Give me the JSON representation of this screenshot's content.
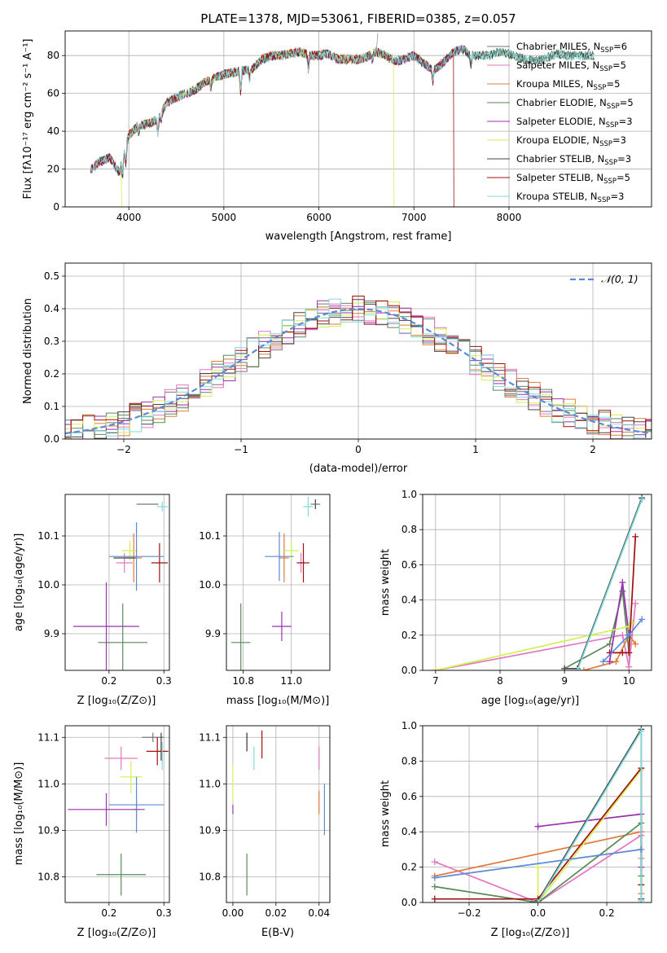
{
  "colors": {
    "chabrier_miles": "#777777",
    "salpeter_miles": "#e377c2",
    "kroupa_miles": "#e07b39",
    "chabrier_elodie": "#5a8a5a",
    "salpeter_elodie": "#9b30b0",
    "kroupa_elodie": "#d4ef55",
    "chabrier_stelib": "#444444",
    "salpeter_stelib": "#a01010",
    "kroupa_stelib": "#80dada",
    "normal": "#5b8ad8",
    "blue_extra": "#5b8ad8"
  },
  "chart_data": [
    {
      "id": "spectrum",
      "type": "line",
      "title": "PLATE=1378, MJD=53061, FIBERID=0385, z=0.057",
      "xlabel": "wavelength [Angstrom, rest frame]",
      "ylabel": "Flux [fλ10⁻¹⁷ erg cm⁻² s⁻¹ A⁻¹]",
      "xlim": [
        3330,
        9500
      ],
      "ylim": [
        0,
        93
      ],
      "xticks": [
        "4000",
        "5000",
        "6000",
        "7000",
        "8000"
      ],
      "yticks": [
        "0",
        "20",
        "40",
        "60",
        "80"
      ],
      "legend_placement": "top-right",
      "legend": [
        {
          "label": "Chabrier MILES, N",
          "sub": "SSP",
          "eq": "=6"
        },
        {
          "label": "Salpeter MILES, N",
          "sub": "SSP",
          "eq": "=5"
        },
        {
          "label": "Kroupa MILES, N",
          "sub": "SSP",
          "eq": "=5"
        },
        {
          "label": "Chabrier ELODIE, N",
          "sub": "SSP",
          "eq": "=5"
        },
        {
          "label": "Salpeter ELODIE, N",
          "sub": "SSP",
          "eq": "=3"
        },
        {
          "label": "Kroupa ELODIE, N",
          "sub": "SSP",
          "eq": "=3"
        },
        {
          "label": "Chabrier STELIB, N",
          "sub": "SSP",
          "eq": "=3"
        },
        {
          "label": "Salpeter STELIB, N",
          "sub": "SSP",
          "eq": "=5"
        },
        {
          "label": "Kroupa STELIB, N",
          "sub": "SSP",
          "eq": "=3"
        }
      ],
      "flux_profile": [
        [
          3600,
          20
        ],
        [
          3700,
          24
        ],
        [
          3800,
          26
        ],
        [
          3900,
          18
        ],
        [
          3950,
          28
        ],
        [
          4000,
          38
        ],
        [
          4100,
          43
        ],
        [
          4200,
          44
        ],
        [
          4300,
          46
        ],
        [
          4400,
          55
        ],
        [
          4500,
          58
        ],
        [
          4600,
          60
        ],
        [
          4700,
          62
        ],
        [
          4800,
          66
        ],
        [
          4900,
          68
        ],
        [
          5000,
          70
        ],
        [
          5100,
          71
        ],
        [
          5200,
          72
        ],
        [
          5300,
          73
        ],
        [
          5400,
          78
        ],
        [
          5500,
          80
        ],
        [
          5600,
          80
        ],
        [
          5700,
          81
        ],
        [
          5800,
          82
        ],
        [
          5900,
          80
        ],
        [
          6000,
          80
        ],
        [
          6100,
          81
        ],
        [
          6200,
          78
        ],
        [
          6300,
          78
        ],
        [
          6400,
          78
        ],
        [
          6500,
          79
        ],
        [
          6600,
          82
        ],
        [
          6700,
          80
        ],
        [
          6800,
          77
        ],
        [
          6900,
          78
        ],
        [
          7000,
          80
        ],
        [
          7100,
          76
        ],
        [
          7200,
          72
        ],
        [
          7300,
          76
        ],
        [
          7400,
          81
        ],
        [
          7500,
          84
        ],
        [
          7600,
          80
        ],
        [
          7700,
          80
        ],
        [
          7800,
          80
        ],
        [
          7900,
          82
        ],
        [
          8000,
          81
        ],
        [
          8100,
          79
        ],
        [
          8200,
          78
        ],
        [
          8300,
          77
        ],
        [
          8400,
          79
        ],
        [
          8500,
          81
        ],
        [
          8600,
          80
        ],
        [
          8700,
          80
        ],
        [
          8800,
          80
        ],
        [
          8900,
          80
        ]
      ],
      "absorption_lines": [
        [
          3934,
          -10
        ],
        [
          3969,
          -9
        ],
        [
          4102,
          -4
        ],
        [
          4305,
          -8
        ],
        [
          4340,
          -5
        ],
        [
          4861,
          -5
        ],
        [
          5175,
          -12
        ],
        [
          5270,
          -6
        ],
        [
          5890,
          -9
        ],
        [
          6563,
          -4
        ],
        [
          7200,
          -6
        ],
        [
          7600,
          -5
        ]
      ]
    },
    {
      "id": "residuals",
      "type": "histogram",
      "xlabel": "(data-model)/error",
      "ylabel": "Normed distribution",
      "xlim": [
        -2.5,
        2.5
      ],
      "ylim": [
        0,
        0.54
      ],
      "xticks": [
        "−2",
        "−1",
        "0",
        "1",
        "2"
      ],
      "yticks": [
        "0.0",
        "0.1",
        "0.2",
        "0.3",
        "0.4",
        "0.5"
      ],
      "legend_placement": "top-right",
      "legend": [
        {
          "label": "𝒩(0, 1)"
        }
      ],
      "bin_width": 0.1,
      "series_seeds": [
        1,
        2,
        3,
        4,
        5,
        6,
        7,
        8,
        9
      ]
    },
    {
      "id": "age_vs_Z",
      "type": "errorbar",
      "xlabel": "Z [log₁₀(Z/Z⊙)]",
      "ylabel": "age  [log₁₀(age/yr)]",
      "xlim": [
        0.12,
        0.31
      ],
      "ylim": [
        9.825,
        10.185
      ],
      "xticks": [
        "0.2",
        "0.3"
      ],
      "yticks": [
        "9.9",
        "10.0",
        "10.1"
      ],
      "points": [
        {
          "s": "chabrier_miles",
          "x": 0.27,
          "y": 10.165,
          "xe": 0.02,
          "ye": 0.0
        },
        {
          "s": "salpeter_miles",
          "x": 0.228,
          "y": 10.045,
          "xe": 0.015,
          "ye": 0.02
        },
        {
          "s": "kroupa_miles",
          "x": 0.245,
          "y": 10.055,
          "xe": 0.015,
          "ye": 0.05
        },
        {
          "s": "chabrier_elodie",
          "x": 0.225,
          "y": 9.882,
          "xe": 0.045,
          "ye": 0.08
        },
        {
          "s": "salpeter_elodie",
          "x": 0.195,
          "y": 9.915,
          "xe": 0.06,
          "ye": 0.09
        },
        {
          "s": "kroupa_elodie",
          "x": 0.238,
          "y": 10.07,
          "xe": 0.015,
          "ye": 0.02
        },
        {
          "s": "chabrier_stelib",
          "x": 0.228,
          "y": 10.055,
          "xe": 0.02,
          "ye": 0.0
        },
        {
          "s": "salpeter_stelib",
          "x": 0.292,
          "y": 10.045,
          "xe": 0.015,
          "ye": 0.04
        },
        {
          "s": "kroupa_stelib",
          "x": 0.297,
          "y": 10.16,
          "xe": 0.01,
          "ye": 0.01
        },
        {
          "s": "blue_extra",
          "x": 0.25,
          "y": 10.058,
          "xe": 0.05,
          "ye": 0.07
        }
      ]
    },
    {
      "id": "age_vs_mass",
      "type": "errorbar",
      "xlabel": "mass [log₁₀(M/M⊙)]",
      "ylabel": "",
      "xlim": [
        10.73,
        11.16
      ],
      "ylim": [
        9.825,
        10.185
      ],
      "xticks": [
        "10.8",
        "11.0"
      ],
      "yticks": [
        "9.9",
        "10.0",
        "10.1"
      ],
      "points": [
        {
          "s": "chabrier_miles",
          "x": 11.1,
          "y": 10.165,
          "xe": 0.02,
          "ye": 0.0
        },
        {
          "s": "salpeter_miles",
          "x": 11.04,
          "y": 10.045,
          "xe": 0.02,
          "ye": 0.02
        },
        {
          "s": "kroupa_miles",
          "x": 10.97,
          "y": 10.055,
          "xe": 0.02,
          "ye": 0.05
        },
        {
          "s": "chabrier_elodie",
          "x": 10.79,
          "y": 9.882,
          "xe": 0.04,
          "ye": 0.08
        },
        {
          "s": "salpeter_elodie",
          "x": 10.96,
          "y": 9.915,
          "xe": 0.04,
          "ye": 0.03
        },
        {
          "s": "kroupa_elodie",
          "x": 11.0,
          "y": 10.07,
          "xe": 0.03,
          "ye": 0.02
        },
        {
          "s": "chabrier_stelib",
          "x": 11.1,
          "y": 10.165,
          "xe": 0.0,
          "ye": 0.01
        },
        {
          "s": "salpeter_stelib",
          "x": 11.05,
          "y": 10.045,
          "xe": 0.025,
          "ye": 0.04
        },
        {
          "s": "kroupa_stelib",
          "x": 11.07,
          "y": 10.16,
          "xe": 0.02,
          "ye": 0.02
        },
        {
          "s": "blue_extra",
          "x": 10.95,
          "y": 10.058,
          "xe": 0.06,
          "ye": 0.05
        }
      ]
    },
    {
      "id": "weight_vs_age",
      "type": "line",
      "xlabel": "age  [log₁₀(age/yr)]",
      "ylabel": "mass weight",
      "xlim": [
        6.8,
        10.35
      ],
      "ylim": [
        0,
        1
      ],
      "xticks": [
        "7",
        "8",
        "9",
        "10"
      ],
      "yticks": [
        "0.0",
        "0.2",
        "0.4",
        "0.6",
        "0.8",
        "1.0"
      ],
      "series": [
        {
          "s": "salpeter_miles",
          "x": [
            7.0,
            9.9,
            10.0,
            10.1
          ],
          "y": [
            0.0,
            0.2,
            0.02,
            0.38
          ]
        },
        {
          "s": "kroupa_miles",
          "x": [
            9.3,
            9.8,
            10.0,
            10.1
          ],
          "y": [
            0.0,
            0.05,
            0.2,
            0.15
          ]
        },
        {
          "s": "chabrier_elodie",
          "x": [
            9.0,
            9.7,
            9.9,
            10.0
          ],
          "y": [
            0.01,
            0.15,
            0.45,
            0.1
          ]
        },
        {
          "s": "salpeter_elodie",
          "x": [
            9.7,
            9.9,
            10.0
          ],
          "y": [
            0.05,
            0.5,
            0.2
          ]
        },
        {
          "s": "kroupa_elodie",
          "x": [
            7.0,
            10.0,
            10.05
          ],
          "y": [
            0.0,
            0.25,
            0.27
          ]
        },
        {
          "s": "chabrier_stelib",
          "x": [
            9.0,
            9.2,
            10.2
          ],
          "y": [
            0.01,
            0.01,
            0.98
          ]
        },
        {
          "s": "salpeter_stelib",
          "x": [
            9.7,
            9.9,
            10.0,
            10.1
          ],
          "y": [
            0.1,
            0.1,
            0.1,
            0.76
          ]
        },
        {
          "s": "kroupa_stelib",
          "x": [
            9.2,
            10.2
          ],
          "y": [
            0.0,
            0.97
          ]
        },
        {
          "s": "normal",
          "x": [
            9.6,
            10.0,
            10.2
          ],
          "y": [
            0.05,
            0.2,
            0.29
          ]
        }
      ]
    },
    {
      "id": "mass_vs_Z",
      "type": "errorbar",
      "xlabel": "Z [log₁₀(Z/Z⊙)]",
      "ylabel": "mass [log₁₀(M/M⊙)]",
      "xlim": [
        0.12,
        0.31
      ],
      "ylim": [
        10.745,
        11.125
      ],
      "xticks": [
        "0.2",
        "0.3"
      ],
      "yticks": [
        "10.8",
        "10.9",
        "11.0",
        "11.1"
      ],
      "points": [
        {
          "s": "chabrier_miles",
          "x": 0.28,
          "y": 11.1,
          "xe": 0.02,
          "ye": 0.01
        },
        {
          "s": "salpeter_miles",
          "x": 0.222,
          "y": 11.055,
          "xe": 0.03,
          "ye": 0.025
        },
        {
          "s": "kroupa_miles",
          "x": 0.25,
          "y": 10.945,
          "xe": 0.005,
          "ye": 0.02
        },
        {
          "s": "chabrier_elodie",
          "x": 0.222,
          "y": 10.805,
          "xe": 0.045,
          "ye": 0.045
        },
        {
          "s": "salpeter_elodie",
          "x": 0.195,
          "y": 10.945,
          "xe": 0.07,
          "ye": 0.035
        },
        {
          "s": "kroupa_elodie",
          "x": 0.24,
          "y": 11.015,
          "xe": 0.02,
          "ye": 0.035
        },
        {
          "s": "chabrier_stelib",
          "x": 0.295,
          "y": 11.08,
          "xe": 0.0,
          "ye": 0.03
        },
        {
          "s": "salpeter_stelib",
          "x": 0.288,
          "y": 11.07,
          "xe": 0.02,
          "ye": 0.03
        },
        {
          "s": "kroupa_stelib",
          "x": 0.297,
          "y": 11.06,
          "xe": 0.0,
          "ye": 0.03
        },
        {
          "s": "blue_extra",
          "x": 0.25,
          "y": 10.955,
          "xe": 0.05,
          "ye": 0.06
        }
      ]
    },
    {
      "id": "mass_vs_ebv",
      "type": "errorbar",
      "xlabel": "E(B-V)",
      "ylabel": "",
      "xlim": [
        -0.003,
        0.045
      ],
      "ylim": [
        10.745,
        11.125
      ],
      "xticks": [
        "0.00",
        "0.02",
        "0.04"
      ],
      "yticks": [
        "10.8",
        "10.9",
        "11.0",
        "11.1"
      ],
      "points": [
        {
          "s": "chabrier_miles",
          "x": 0.0065,
          "y": 11.09,
          "xe": 0.0,
          "ye": 0.02
        },
        {
          "s": "salpeter_miles",
          "x": 0.04,
          "y": 11.055,
          "xe": 0.0,
          "ye": 0.025
        },
        {
          "s": "kroupa_miles",
          "x": 0.04,
          "y": 10.96,
          "xe": 0.0,
          "ye": 0.025
        },
        {
          "s": "chabrier_elodie",
          "x": 0.0065,
          "y": 10.805,
          "xe": 0.0,
          "ye": 0.045
        },
        {
          "s": "salpeter_elodie",
          "x": 0.0,
          "y": 10.945,
          "xe": 0.0,
          "ye": 0.01
        },
        {
          "s": "kroupa_elodie",
          "x": 0.0,
          "y": 11.0,
          "xe": 0.0,
          "ye": 0.04
        },
        {
          "s": "chabrier_stelib",
          "x": 0.0065,
          "y": 11.09,
          "xe": 0.0,
          "ye": 0.02
        },
        {
          "s": "salpeter_stelib",
          "x": 0.0135,
          "y": 11.085,
          "xe": 0.0,
          "ye": 0.03
        },
        {
          "s": "kroupa_stelib",
          "x": 0.0098,
          "y": 11.055,
          "xe": 0.0,
          "ye": 0.025
        },
        {
          "s": "blue_extra",
          "x": 0.0425,
          "y": 10.945,
          "xe": 0.0,
          "ye": 0.055
        }
      ]
    },
    {
      "id": "weight_vs_Z",
      "type": "line",
      "xlabel": "Z [log₁₀(Z/Z⊙)]",
      "ylabel": "mass weight",
      "xlim": [
        -0.335,
        0.33
      ],
      "ylim": [
        0,
        1
      ],
      "xticks": [
        "−0.2",
        "0.0",
        "0.2"
      ],
      "yticks": [
        "0.0",
        "0.2",
        "0.4",
        "0.6",
        "0.8",
        "1.0"
      ],
      "series": [
        {
          "s": "salpeter_miles",
          "x": [
            -0.3,
            0.0,
            0.3,
            0.3
          ],
          "y": [
            0.23,
            0.0,
            0.38,
            0.25
          ]
        },
        {
          "s": "kroupa_miles",
          "x": [
            -0.3,
            0.3,
            0.3
          ],
          "y": [
            0.15,
            0.4,
            0.05
          ]
        },
        {
          "s": "chabrier_elodie",
          "x": [
            -0.3,
            0.0,
            0.3,
            0.3
          ],
          "y": [
            0.09,
            0.0,
            0.45,
            0.15
          ]
        },
        {
          "s": "salpeter_elodie",
          "x": [
            0.0,
            0.3,
            0.3
          ],
          "y": [
            0.43,
            0.5,
            0.2
          ]
        },
        {
          "s": "kroupa_elodie",
          "x": [
            0.0,
            0.0,
            0.3
          ],
          "y": [
            0.2,
            0.0,
            0.75
          ]
        },
        {
          "s": "chabrier_stelib",
          "x": [
            0.0,
            0.3,
            0.3
          ],
          "y": [
            0.01,
            0.98,
            0.02
          ]
        },
        {
          "s": "salpeter_stelib",
          "x": [
            -0.3,
            0.0,
            0.3,
            0.3
          ],
          "y": [
            0.02,
            0.02,
            0.76,
            0.1
          ]
        },
        {
          "s": "kroupa_stelib",
          "x": [
            0.0,
            0.3,
            0.3
          ],
          "y": [
            0.0,
            0.97,
            0.01
          ]
        },
        {
          "s": "normal",
          "x": [
            -0.3,
            0.3
          ],
          "y": [
            0.14,
            0.3
          ]
        }
      ]
    }
  ]
}
